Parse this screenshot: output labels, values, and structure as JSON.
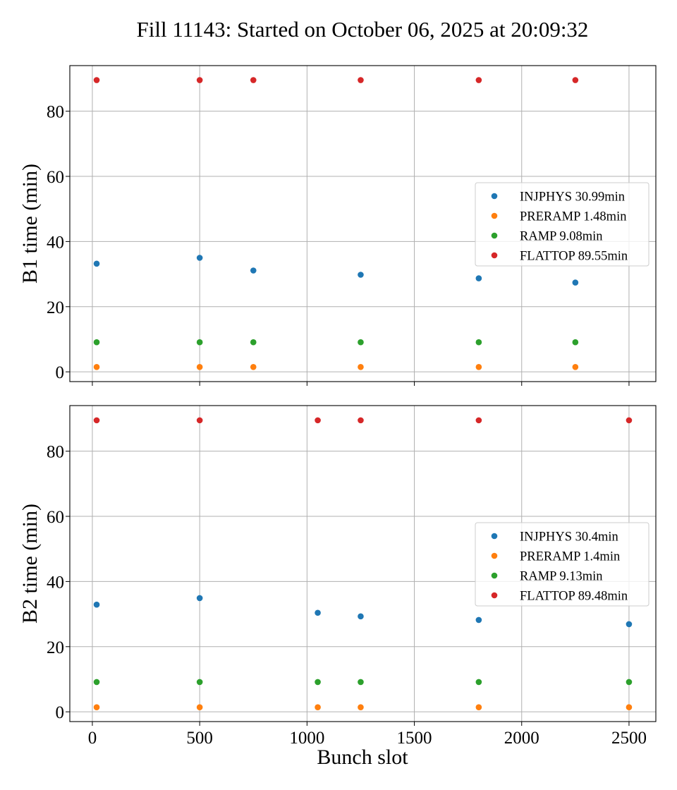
{
  "chart_data": {
    "type": "scatter",
    "title": "Fill 11143: Started on October 06, 2025 at 20:09:32",
    "xlabel": "Bunch slot",
    "xlim": [
      -105,
      2625
    ],
    "xticks": [
      0,
      500,
      1000,
      1500,
      2000,
      2500
    ],
    "xtick_labels": [
      "0",
      "500",
      "1000",
      "1500",
      "2000",
      "2500"
    ],
    "grid": true,
    "colors": {
      "INJPHYS": "#1f77b4",
      "PRERAMP": "#ff7f0e",
      "RAMP": "#2ca02c",
      "FLATTOP": "#d62728"
    },
    "panels": [
      {
        "id": "b1",
        "ylabel": "B1 time (min)",
        "ylim": [
          -3,
          94
        ],
        "yticks": [
          0,
          20,
          40,
          60,
          80
        ],
        "ytick_labels": [
          "0",
          "20",
          "40",
          "60",
          "80"
        ],
        "show_xtick_labels": false,
        "legend_position": "center-right",
        "series": [
          {
            "name": "INJPHYS",
            "legend": "INJPHYS 30.99min",
            "x": [
              20,
              500,
              750,
              1250,
              1800,
              2250
            ],
            "y": [
              33.2,
              35.0,
              31.1,
              29.8,
              28.7,
              27.4
            ]
          },
          {
            "name": "PRERAMP",
            "legend": "PRERAMP 1.48min",
            "x": [
              20,
              500,
              750,
              1250,
              1800,
              2250
            ],
            "y": [
              1.48,
              1.48,
              1.48,
              1.48,
              1.48,
              1.48
            ]
          },
          {
            "name": "RAMP",
            "legend": "RAMP 9.08min",
            "x": [
              20,
              500,
              750,
              1250,
              1800,
              2250
            ],
            "y": [
              9.08,
              9.08,
              9.08,
              9.08,
              9.08,
              9.08
            ]
          },
          {
            "name": "FLATTOP",
            "legend": "FLATTOP 89.55min",
            "x": [
              20,
              500,
              750,
              1250,
              1800,
              2250
            ],
            "y": [
              89.55,
              89.55,
              89.55,
              89.55,
              89.55,
              89.55
            ]
          }
        ]
      },
      {
        "id": "b2",
        "ylabel": "B2 time (min)",
        "ylim": [
          -3,
          94
        ],
        "yticks": [
          0,
          20,
          40,
          60,
          80
        ],
        "ytick_labels": [
          "0",
          "20",
          "40",
          "60",
          "80"
        ],
        "show_xtick_labels": true,
        "legend_position": "center-right",
        "series": [
          {
            "name": "INJPHYS",
            "legend": "INJPHYS 30.4min",
            "x": [
              20,
              500,
              1050,
              1250,
              1800,
              2500
            ],
            "y": [
              32.9,
              34.9,
              30.4,
              29.3,
              28.2,
              26.9
            ]
          },
          {
            "name": "PRERAMP",
            "legend": "PRERAMP 1.4min",
            "x": [
              20,
              500,
              1050,
              1250,
              1800,
              2500
            ],
            "y": [
              1.4,
              1.4,
              1.4,
              1.4,
              1.4,
              1.4
            ]
          },
          {
            "name": "RAMP",
            "legend": "RAMP 9.13min",
            "x": [
              20,
              500,
              1050,
              1250,
              1800,
              2500
            ],
            "y": [
              9.13,
              9.13,
              9.13,
              9.13,
              9.13,
              9.13
            ]
          },
          {
            "name": "FLATTOP",
            "legend": "FLATTOP 89.48min",
            "x": [
              20,
              500,
              1050,
              1250,
              1800,
              2500
            ],
            "y": [
              89.48,
              89.48,
              89.48,
              89.48,
              89.48,
              89.48
            ]
          }
        ]
      }
    ]
  }
}
